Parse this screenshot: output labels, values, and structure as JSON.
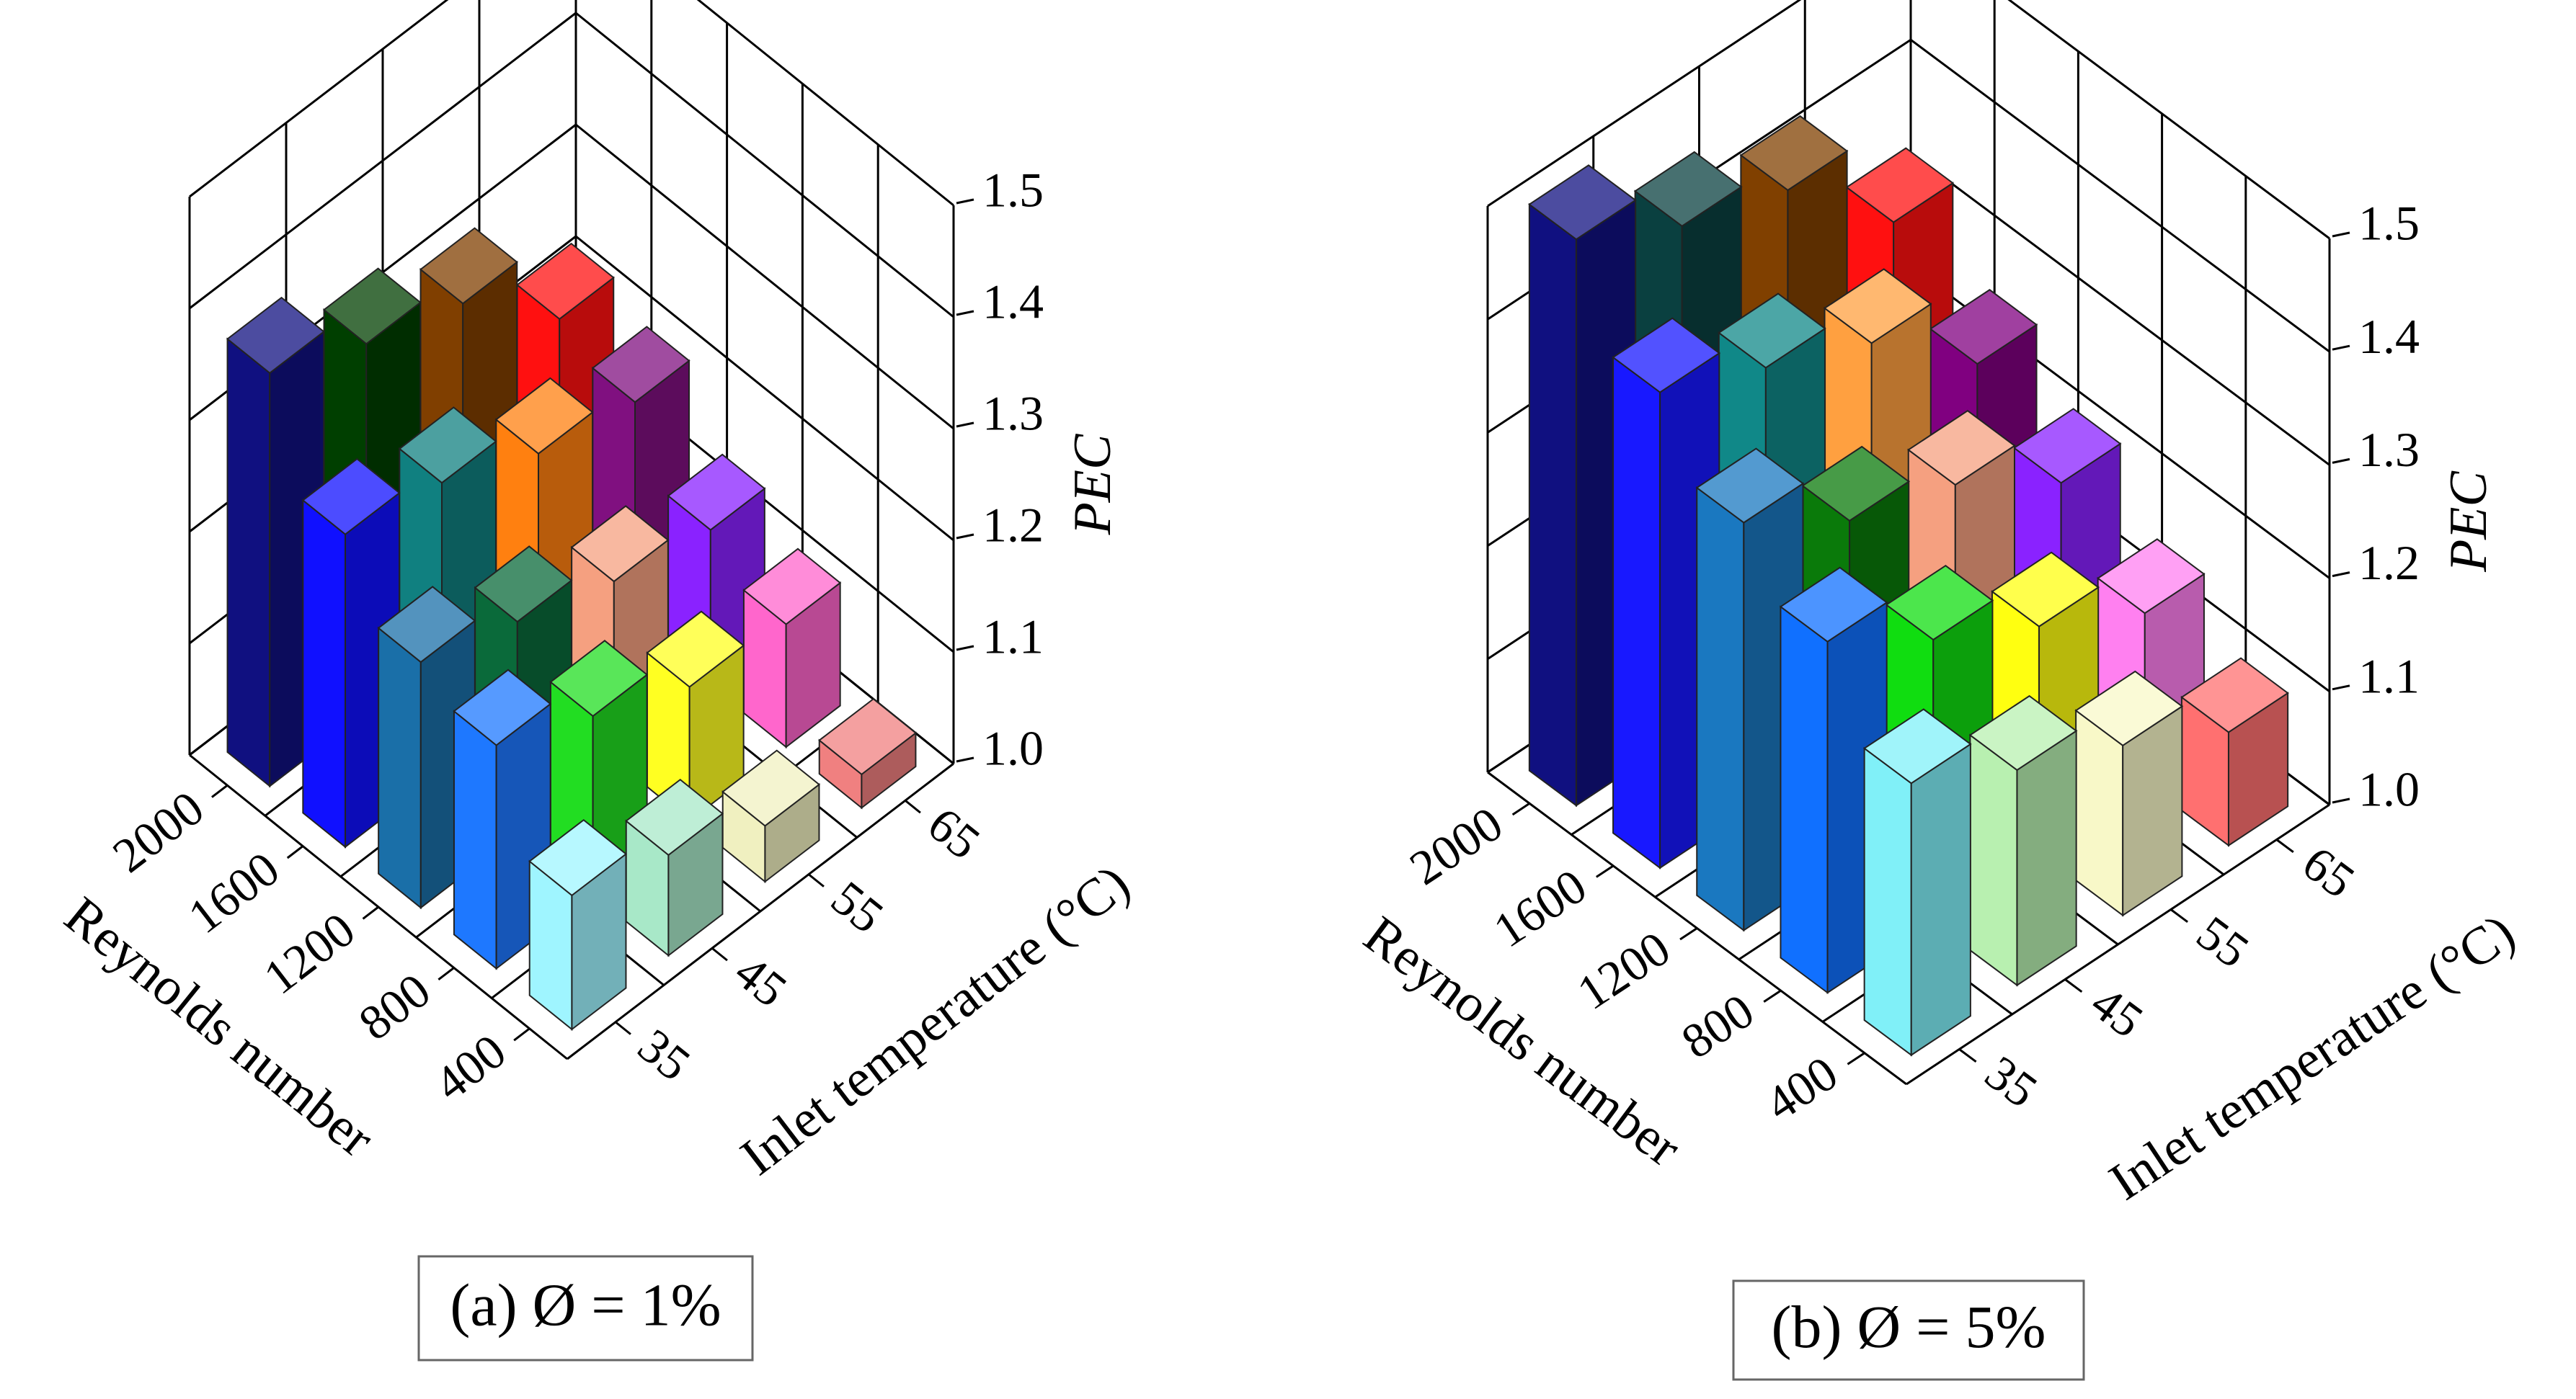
{
  "chart_data": [
    {
      "type": "bar3d",
      "caption": "(a) Ø = 1%",
      "x_label": "Reynolds number",
      "y_label": "Inlet temperature (°C)",
      "z_label": "PEC",
      "x_categories": [
        400,
        800,
        1200,
        1600,
        2000
      ],
      "y_categories": [
        35,
        45,
        55,
        65
      ],
      "values": [
        [
          1.12,
          1.09,
          1.05,
          1.03
        ],
        [
          1.2,
          1.16,
          1.12,
          1.11
        ],
        [
          1.22,
          1.19,
          1.16,
          1.14
        ],
        [
          1.28,
          1.26,
          1.22,
          1.2
        ],
        [
          1.37,
          1.33,
          1.3,
          1.22
        ]
      ],
      "colors": [
        [
          "#9ff5ff",
          "#a8e8c8",
          "#f0f0c0",
          "#f08080"
        ],
        [
          "#1e78ff",
          "#22dd22",
          "#ffff22",
          "#ff66cc"
        ],
        [
          "#1a6fa8",
          "#0a6a3a",
          "#f5a080",
          "#8a22ff"
        ],
        [
          "#1010ff",
          "#108080",
          "#ff8010",
          "#801080"
        ],
        [
          "#101080",
          "#003f00",
          "#803f00",
          "#ff1010"
        ]
      ],
      "zlim": [
        1.0,
        1.5
      ],
      "zticks": [
        {
          "value": 1.0,
          "label": "1.0"
        },
        1.1,
        1.2,
        1.3,
        1.4,
        1.5
      ]
    },
    {
      "type": "bar3d",
      "caption": "(b) Ø = 5%",
      "x_label": "Reynolds number",
      "y_label": "Inlet temperature (°C)",
      "z_label": "PEC",
      "x_categories": [
        400,
        800,
        1200,
        1600,
        2000
      ],
      "y_categories": [
        35,
        45,
        55,
        65
      ],
      "values": [
        [
          1.24,
          1.19,
          1.15,
          1.1
        ],
        [
          1.31,
          1.25,
          1.2,
          1.15
        ],
        [
          1.36,
          1.3,
          1.27,
          1.21
        ],
        [
          1.42,
          1.38,
          1.34,
          1.26
        ],
        [
          1.5,
          1.45,
          1.42,
          1.33
        ]
      ],
      "colors": [
        [
          "#80f0f8",
          "#b8f0b0",
          "#f8f8c8",
          "#ff7070"
        ],
        [
          "#1070ff",
          "#10dd10",
          "#ffff10",
          "#ff80f0"
        ],
        [
          "#1a78c0",
          "#0a7a0a",
          "#f5a080",
          "#8a22ff"
        ],
        [
          "#1818ff",
          "#108888",
          "#ffa040",
          "#800080"
        ],
        [
          "#101080",
          "#0a4040",
          "#804000",
          "#ff1010"
        ]
      ],
      "zlim": [
        1.0,
        1.5
      ],
      "zticks": [
        {
          "value": 1.0,
          "label": "1.0"
        },
        1.1,
        1.2,
        1.3,
        1.4,
        1.5
      ]
    }
  ]
}
